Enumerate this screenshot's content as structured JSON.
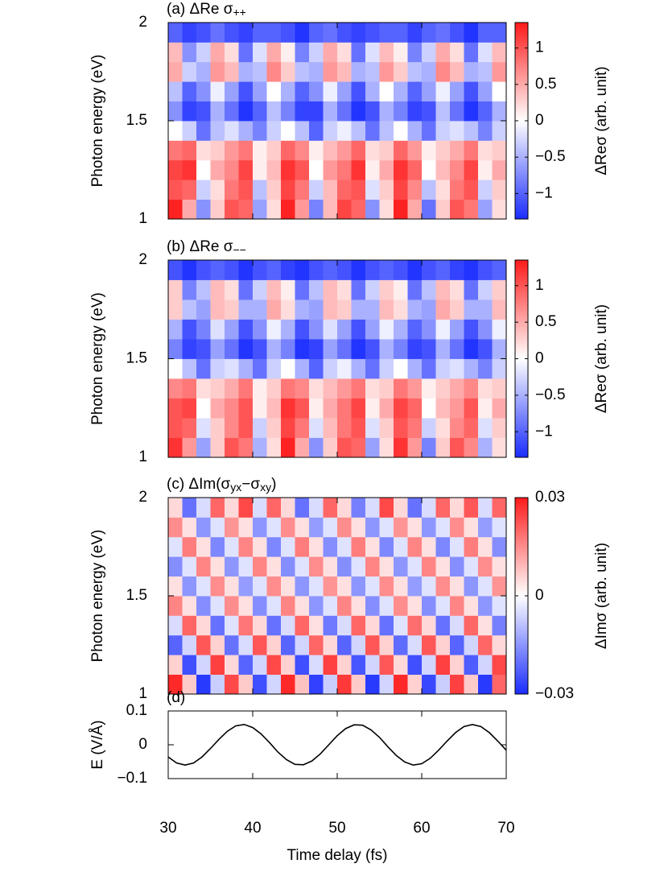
{
  "chart_data": [
    {
      "type": "heatmap",
      "title": [
        "(a) ΔRe σ",
        "++"
      ],
      "ylabel": "Photon energy (eV)",
      "xlim": [
        30,
        70
      ],
      "ylim": [
        1,
        2
      ],
      "xticks": [
        30,
        40,
        50,
        60,
        70
      ],
      "show_xtick_labels": false,
      "yticks": [
        1,
        1.5,
        2
      ],
      "zlim": [
        -1.35,
        1.35
      ],
      "zticks": [
        {
          "value": -1,
          "label": "−1"
        },
        {
          "value": -0.5,
          "label": "−0.5"
        },
        0,
        0.5,
        1
      ],
      "colorbar_label": "ΔReσ (arb. unit)",
      "colormap": [
        "#1a2cff",
        "#ffffff",
        "#ff1a1a"
      ],
      "values": [
        [
          1.3,
          0.5,
          -0.7,
          0.3,
          1.0,
          0.9,
          -0.6,
          0.2,
          1.3,
          0.6,
          -0.8,
          0.4,
          1.1,
          0.9,
          -0.7,
          0.2,
          1.3,
          0.5,
          -0.9,
          0.3,
          1.0,
          0.8,
          -0.6,
          0.2
        ],
        [
          1.0,
          0.9,
          -0.3,
          0.2,
          0.8,
          1.0,
          -0.4,
          0.3,
          1.1,
          0.8,
          -0.3,
          0.4,
          0.9,
          1.0,
          -0.2,
          0.3,
          1.1,
          0.7,
          -0.4,
          0.2,
          0.8,
          1.0,
          -0.3,
          0.3
        ],
        [
          1.1,
          1.2,
          0.0,
          0.5,
          0.7,
          1.1,
          0.1,
          0.4,
          1.2,
          1.0,
          0.0,
          0.6,
          0.8,
          1.2,
          0.1,
          0.5,
          1.2,
          0.9,
          0.0,
          0.4,
          0.7,
          1.1,
          0.1,
          0.5
        ],
        [
          0.8,
          0.9,
          0.2,
          0.3,
          0.6,
          0.8,
          0.1,
          0.3,
          0.9,
          0.7,
          0.1,
          0.4,
          0.6,
          0.9,
          0.2,
          0.3,
          0.9,
          0.6,
          0.1,
          0.3,
          0.5,
          0.8,
          0.2,
          0.3
        ],
        [
          0.0,
          -0.3,
          -0.9,
          -0.4,
          -0.2,
          -0.5,
          -0.8,
          -0.3,
          0.0,
          -0.4,
          -1.0,
          -0.3,
          -0.1,
          -0.4,
          -0.9,
          -0.4,
          0.0,
          -0.5,
          -0.9,
          -0.3,
          -0.2,
          -0.4,
          -0.8,
          -0.3
        ],
        [
          -0.7,
          -1.2,
          -1.1,
          -0.5,
          -0.9,
          -1.3,
          -1.0,
          -0.4,
          -0.8,
          -1.2,
          -1.2,
          -0.5,
          -0.9,
          -1.3,
          -1.1,
          -0.5,
          -0.8,
          -1.2,
          -1.1,
          -0.4,
          -0.9,
          -1.3,
          -1.0,
          -0.5
        ],
        [
          -0.4,
          -1.0,
          -0.7,
          -0.1,
          -0.6,
          -1.1,
          -0.6,
          0.0,
          -0.5,
          -1.0,
          -0.7,
          -0.1,
          -0.6,
          -1.1,
          -0.5,
          0.0,
          -0.5,
          -1.0,
          -0.6,
          -0.1,
          -0.6,
          -1.1,
          -0.6,
          0.0
        ],
        [
          0.5,
          -0.3,
          -0.5,
          0.6,
          0.4,
          -0.5,
          -0.4,
          0.7,
          0.3,
          -0.4,
          -0.5,
          0.6,
          0.4,
          -0.5,
          -0.4,
          0.6,
          0.3,
          -0.4,
          -0.5,
          0.7,
          0.4,
          -0.5,
          -0.4,
          0.6
        ],
        [
          0.4,
          -0.7,
          -0.3,
          0.5,
          0.2,
          -0.9,
          -0.2,
          0.5,
          0.1,
          -0.8,
          -0.3,
          0.5,
          0.2,
          -0.9,
          -0.2,
          0.4,
          0.1,
          -0.8,
          -0.3,
          0.5,
          0.2,
          -0.9,
          -0.2,
          0.4
        ],
        [
          -1.0,
          -1.2,
          -1.1,
          -0.9,
          -1.1,
          -1.2,
          -1.0,
          -1.0,
          -1.1,
          -1.3,
          -1.0,
          -0.9,
          -1.1,
          -1.2,
          -1.1,
          -1.0,
          -1.0,
          -1.2,
          -1.0,
          -0.9,
          -1.1,
          -1.3,
          -1.0,
          -1.0
        ]
      ]
    },
    {
      "type": "heatmap",
      "title": [
        "(b) ΔRe σ",
        "−−"
      ],
      "ylabel": "Photon energy (eV)",
      "xlim": [
        30,
        70
      ],
      "ylim": [
        1,
        2
      ],
      "xticks": [
        30,
        40,
        50,
        60,
        70
      ],
      "show_xtick_labels": false,
      "yticks": [
        1,
        1.5,
        2
      ],
      "zlim": [
        -1.35,
        1.35
      ],
      "zticks": [
        {
          "value": -1,
          "label": "−1"
        },
        {
          "value": -0.5,
          "label": "−0.5"
        },
        0,
        0.5,
        1
      ],
      "colorbar_label": "ΔReσ (arb. unit)",
      "colormap": [
        "#1a2cff",
        "#ffffff",
        "#ff1a1a"
      ],
      "values": [
        [
          1.2,
          0.6,
          -0.6,
          0.3,
          1.0,
          0.8,
          -0.5,
          0.2,
          1.3,
          0.5,
          -0.7,
          0.3,
          1.0,
          0.9,
          -0.6,
          0.2,
          1.2,
          0.6,
          -0.8,
          0.3,
          1.0,
          0.7,
          -0.5,
          0.2
        ],
        [
          1.0,
          0.9,
          -0.2,
          0.3,
          0.7,
          1.0,
          -0.3,
          0.3,
          1.1,
          0.8,
          -0.2,
          0.4,
          0.8,
          1.0,
          -0.2,
          0.3,
          1.0,
          0.8,
          -0.3,
          0.2,
          0.7,
          0.9,
          -0.2,
          0.3
        ],
        [
          1.0,
          1.1,
          0.0,
          0.5,
          0.7,
          1.0,
          0.1,
          0.4,
          1.2,
          1.0,
          0.1,
          0.5,
          0.8,
          1.1,
          0.1,
          0.5,
          1.1,
          0.9,
          0.0,
          0.4,
          0.6,
          1.0,
          0.1,
          0.5
        ],
        [
          0.7,
          0.8,
          0.2,
          0.3,
          0.5,
          0.8,
          0.1,
          0.3,
          0.8,
          0.7,
          0.2,
          0.4,
          0.6,
          0.8,
          0.2,
          0.3,
          0.8,
          0.6,
          0.1,
          0.3,
          0.5,
          0.7,
          0.2,
          0.3
        ],
        [
          0.0,
          -0.4,
          -0.9,
          -0.3,
          -0.2,
          -0.5,
          -0.9,
          -0.3,
          0.0,
          -0.5,
          -1.0,
          -0.3,
          -0.1,
          -0.5,
          -0.9,
          -0.3,
          0.0,
          -0.5,
          -0.9,
          -0.3,
          -0.2,
          -0.5,
          -0.8,
          -0.3
        ],
        [
          -0.8,
          -1.2,
          -1.1,
          -0.6,
          -0.9,
          -1.3,
          -1.1,
          -0.5,
          -0.8,
          -1.3,
          -1.2,
          -0.6,
          -0.9,
          -1.3,
          -1.1,
          -0.5,
          -0.8,
          -1.2,
          -1.1,
          -0.5,
          -0.9,
          -1.3,
          -1.1,
          -0.5
        ],
        [
          -0.5,
          -1.1,
          -0.8,
          -0.2,
          -0.6,
          -1.1,
          -0.7,
          -0.1,
          -0.5,
          -1.1,
          -0.7,
          -0.2,
          -0.6,
          -1.1,
          -0.6,
          -0.1,
          -0.5,
          -1.0,
          -0.7,
          -0.1,
          -0.6,
          -1.1,
          -0.7,
          -0.1
        ],
        [
          0.3,
          -0.4,
          -0.6,
          0.4,
          0.3,
          -0.5,
          -0.5,
          0.5,
          0.2,
          -0.5,
          -0.6,
          0.4,
          0.3,
          -0.5,
          -0.5,
          0.4,
          0.2,
          -0.5,
          -0.6,
          0.5,
          0.3,
          -0.5,
          -0.5,
          0.4
        ],
        [
          0.3,
          -0.8,
          -0.4,
          0.4,
          0.2,
          -0.9,
          -0.3,
          0.4,
          0.1,
          -0.9,
          -0.4,
          0.4,
          0.2,
          -0.9,
          -0.3,
          0.3,
          0.1,
          -0.9,
          -0.4,
          0.4,
          0.2,
          -0.9,
          -0.3,
          0.3
        ],
        [
          -1.1,
          -1.3,
          -1.1,
          -1.0,
          -1.1,
          -1.3,
          -1.1,
          -1.0,
          -1.2,
          -1.3,
          -1.1,
          -1.0,
          -1.1,
          -1.3,
          -1.1,
          -1.0,
          -1.1,
          -1.3,
          -1.1,
          -1.0,
          -1.2,
          -1.3,
          -1.1,
          -1.0
        ]
      ]
    },
    {
      "type": "heatmap",
      "title": [
        "(c) ΔIm(σ",
        "yx",
        "−σ",
        "xy",
        ")"
      ],
      "ylabel": "Photon energy (eV)",
      "xlim": [
        30,
        70
      ],
      "ylim": [
        1,
        2
      ],
      "xticks": [
        30,
        40,
        50,
        60,
        70
      ],
      "show_xtick_labels": false,
      "yticks": [
        1,
        1.5,
        2
      ],
      "zlim": [
        -0.03,
        0.03
      ],
      "zticks": [
        {
          "value": -0.03,
          "label": "−0.03"
        },
        0,
        0.03
      ],
      "colorbar_label": "ΔImσ (arb. unit)",
      "colormap": [
        "#1a2cff",
        "#ffffff",
        "#ff1a1a"
      ],
      "values": [
        [
          0.028,
          0.007,
          -0.028,
          -0.007,
          0.024,
          0.007,
          -0.025,
          -0.006,
          0.028,
          0.008,
          -0.027,
          -0.007,
          0.026,
          0.007,
          -0.028,
          -0.006,
          0.028,
          0.006,
          -0.026,
          -0.007,
          0.025,
          0.007,
          -0.028,
          0.02
        ],
        [
          0.006,
          -0.025,
          -0.006,
          0.025,
          0.005,
          -0.022,
          -0.006,
          0.024,
          0.006,
          -0.025,
          -0.005,
          0.025,
          0.006,
          -0.024,
          -0.006,
          0.022,
          0.005,
          -0.025,
          -0.006,
          0.025,
          0.006,
          -0.023,
          -0.006,
          0.024
        ],
        [
          -0.022,
          -0.006,
          0.022,
          0.006,
          -0.02,
          -0.005,
          0.022,
          0.006,
          -0.022,
          -0.006,
          0.02,
          0.005,
          -0.022,
          -0.006,
          0.022,
          0.006,
          -0.021,
          -0.005,
          0.022,
          0.006,
          -0.022,
          -0.006,
          0.02,
          0.005
        ],
        [
          -0.005,
          0.02,
          0.005,
          -0.02,
          -0.004,
          0.018,
          0.005,
          -0.02,
          -0.005,
          0.02,
          0.004,
          -0.019,
          -0.005,
          0.02,
          0.005,
          -0.02,
          -0.004,
          0.019,
          0.005,
          -0.02,
          -0.005,
          0.02,
          0.004,
          -0.018
        ],
        [
          0.016,
          0.004,
          -0.016,
          -0.004,
          0.015,
          0.004,
          -0.016,
          -0.004,
          0.016,
          0.004,
          -0.015,
          -0.004,
          0.016,
          0.004,
          -0.016,
          -0.004,
          0.015,
          0.004,
          -0.016,
          -0.004,
          0.016,
          0.004,
          -0.015,
          -0.004
        ],
        [
          0.004,
          -0.015,
          -0.004,
          0.015,
          0.004,
          -0.014,
          -0.004,
          0.015,
          0.004,
          -0.015,
          -0.004,
          0.014,
          0.004,
          -0.015,
          -0.004,
          0.015,
          0.004,
          -0.014,
          -0.004,
          0.015,
          0.004,
          -0.015,
          -0.004,
          0.014
        ],
        [
          -0.016,
          -0.004,
          0.016,
          0.004,
          -0.015,
          -0.004,
          0.016,
          0.004,
          -0.016,
          -0.004,
          0.015,
          0.004,
          -0.016,
          -0.004,
          0.016,
          0.004,
          -0.015,
          -0.004,
          0.016,
          0.004,
          -0.016,
          -0.004,
          0.015,
          0.004
        ],
        [
          -0.004,
          0.017,
          0.004,
          -0.017,
          -0.004,
          0.016,
          0.004,
          -0.017,
          -0.004,
          0.017,
          0.004,
          -0.016,
          -0.004,
          0.017,
          0.004,
          -0.017,
          -0.004,
          0.016,
          0.004,
          -0.017,
          -0.004,
          0.017,
          0.004,
          -0.016
        ],
        [
          0.015,
          0.004,
          -0.015,
          -0.004,
          0.014,
          0.004,
          -0.015,
          -0.004,
          0.015,
          0.004,
          -0.014,
          -0.004,
          0.015,
          0.004,
          -0.015,
          -0.004,
          0.014,
          0.004,
          -0.015,
          -0.004,
          0.015,
          0.004,
          -0.014,
          -0.004
        ],
        [
          0.005,
          -0.02,
          -0.005,
          0.02,
          0.005,
          0.024,
          -0.005,
          0.02,
          0.005,
          -0.02,
          -0.005,
          0.02,
          0.005,
          -0.018,
          -0.005,
          0.024,
          0.005,
          -0.02,
          -0.005,
          0.02,
          0.005,
          0.022,
          -0.005,
          0.02
        ]
      ]
    },
    {
      "type": "line",
      "title": [
        "(d)"
      ],
      "ylabel": "E (V/Å)",
      "xlabel": "Time delay (fs)",
      "color": "#000000",
      "xlim": [
        30,
        70
      ],
      "ylim": [
        -0.1,
        0.1
      ],
      "xticks": [
        30,
        40,
        50,
        60,
        70
      ],
      "show_xtick_labels": true,
      "yticks": [
        {
          "value": -0.1,
          "label": "−0.1"
        },
        0,
        0.1
      ],
      "x": [
        30,
        31,
        32,
        33,
        34,
        35,
        36,
        37,
        38,
        39,
        40,
        41,
        42,
        43,
        44,
        45,
        46,
        47,
        48,
        49,
        50,
        51,
        52,
        53,
        54,
        55,
        56,
        57,
        58,
        59,
        60,
        61,
        62,
        63,
        64,
        65,
        66,
        67,
        68,
        69,
        70
      ],
      "values": [
        -0.036,
        -0.054,
        -0.06,
        -0.054,
        -0.036,
        -0.011,
        0.016,
        0.04,
        0.056,
        0.06,
        0.051,
        0.032,
        0.006,
        -0.022,
        -0.044,
        -0.058,
        -0.059,
        -0.048,
        -0.027,
        0.0,
        0.027,
        0.048,
        0.059,
        0.058,
        0.044,
        0.022,
        -0.006,
        -0.032,
        -0.051,
        -0.06,
        -0.056,
        -0.04,
        -0.016,
        0.011,
        0.036,
        0.054,
        0.06,
        0.054,
        0.036,
        0.011,
        -0.016
      ]
    }
  ]
}
